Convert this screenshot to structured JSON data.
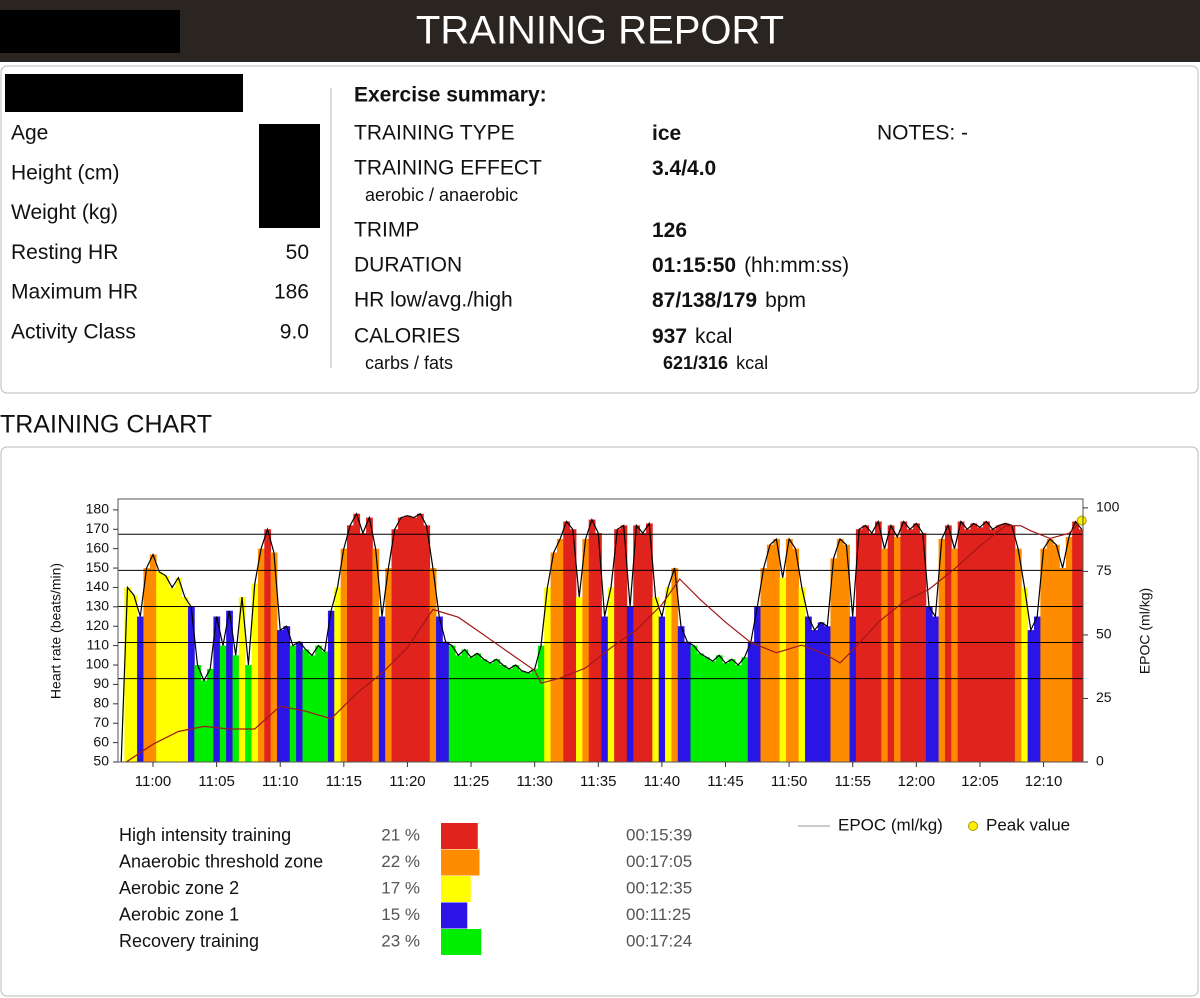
{
  "header": {
    "title": "TRAINING REPORT"
  },
  "profile": {
    "rows": [
      {
        "label": "Age"
      },
      {
        "label": "Height (cm)"
      },
      {
        "label": "Weight (kg)"
      },
      {
        "label": "Resting HR",
        "value": 50
      },
      {
        "label": "Maximum HR",
        "value": 186
      },
      {
        "label": "Activity Class",
        "value": "9.0"
      }
    ]
  },
  "summary": {
    "heading": "Exercise summary:",
    "notes": "NOTES: -",
    "rows": [
      {
        "label": "TRAINING TYPE",
        "value": "ice"
      },
      {
        "label": "TRAINING EFFECT",
        "sub_label": "aerobic / anaerobic",
        "value": "3.4/4.0"
      },
      {
        "label": "TRIMP",
        "value": "126"
      },
      {
        "label": "DURATION",
        "value": "01:15:50",
        "unit": "(hh:mm:ss)"
      },
      {
        "label": "HR low/avg./high",
        "value": "87/138/179",
        "unit": "bpm"
      },
      {
        "label": "CALORIES",
        "value": "937",
        "unit": "kcal",
        "sub_label": "carbs / fats",
        "sub_value": "621/316",
        "sub_unit": "kcal"
      }
    ]
  },
  "section_title": "TRAINING CHART",
  "chart_data": {
    "type": "area",
    "y_label": "Heart rate (beats/min)",
    "y2_label": "EPOC (ml/kg)",
    "xlim": [
      657.25,
      733.1
    ],
    "xticks": [
      {
        "value": 660,
        "label": "11:00"
      },
      {
        "value": 665,
        "label": "11:05"
      },
      {
        "value": 670,
        "label": "11:10"
      },
      {
        "value": 675,
        "label": "11:15"
      },
      {
        "value": 680,
        "label": "11:20"
      },
      {
        "value": 685,
        "label": "11:25"
      },
      {
        "value": 690,
        "label": "11:30"
      },
      {
        "value": 695,
        "label": "11:35"
      },
      {
        "value": 700,
        "label": "11:40"
      },
      {
        "value": 705,
        "label": "11:45"
      },
      {
        "value": 710,
        "label": "11:50"
      },
      {
        "value": 715,
        "label": "11:55"
      },
      {
        "value": 720,
        "label": "12:00"
      },
      {
        "value": 725,
        "label": "12:05"
      },
      {
        "value": 730,
        "label": "12:10"
      }
    ],
    "ylim": [
      50,
      185.6
    ],
    "yticks": [
      50,
      60,
      70,
      80,
      90,
      100,
      110,
      120,
      130,
      140,
      150,
      160,
      170,
      180
    ],
    "y2lim": [
      0,
      103.5
    ],
    "y2ticks": [
      0,
      25,
      50,
      75,
      100
    ],
    "zone_lines": [
      93,
      111.6,
      130.2,
      148.8,
      167.4
    ],
    "series": [
      {
        "color": "#000000",
        "x": [
          657.5,
          658,
          658.5,
          659,
          659.5,
          660,
          660.5,
          661,
          661.5,
          662,
          662.5,
          663,
          663.5,
          664,
          664.5,
          665,
          665.5,
          666,
          666.5,
          667,
          667.5,
          668,
          668.5,
          669,
          669.5,
          670,
          670.5,
          671,
          671.5,
          672,
          672.5,
          673,
          673.5,
          674,
          674.5,
          675,
          675.5,
          676,
          676.5,
          677,
          677.5,
          678,
          678.5,
          679,
          679.5,
          680,
          680.5,
          681,
          681.5,
          682,
          682.5,
          683,
          683.5,
          684,
          684.5,
          685,
          685.5,
          686,
          686.5,
          687,
          687.5,
          688,
          688.5,
          689,
          689.5,
          690,
          690.5,
          691,
          691.5,
          692,
          692.5,
          693,
          693.5,
          694,
          694.5,
          695,
          695.5,
          696,
          696.5,
          697,
          697.5,
          698,
          698.5,
          699,
          699.5,
          700,
          700.5,
          701,
          701.5,
          702,
          702.5,
          703,
          703.5,
          704,
          704.5,
          705,
          705.5,
          706,
          706.5,
          707,
          707.5,
          708,
          708.5,
          709,
          709.5,
          710,
          710.5,
          711,
          711.5,
          712,
          712.5,
          713,
          713.5,
          714,
          714.5,
          715,
          715.5,
          716,
          716.5,
          717,
          717.5,
          718,
          718.5,
          719,
          719.5,
          720,
          720.5,
          721,
          721.5,
          722,
          722.5,
          723,
          723.5,
          724,
          724.5,
          725,
          725.5,
          726,
          726.5,
          727,
          727.5,
          728,
          728.5,
          729,
          729.5,
          730,
          730.5,
          731,
          731.5,
          732,
          732.5,
          733
        ],
        "values": [
          50,
          140,
          136,
          125,
          150,
          157,
          148,
          146,
          140,
          145,
          135,
          130,
          100,
          92,
          98,
          125,
          110,
          128,
          105,
          135,
          100,
          142,
          160,
          170,
          158,
          118,
          120,
          110,
          112,
          108,
          105,
          110,
          107,
          128,
          140,
          160,
          172,
          178,
          168,
          176,
          160,
          125,
          150,
          170,
          176,
          177,
          176,
          178,
          172,
          150,
          125,
          112,
          110,
          105,
          108,
          104,
          106,
          103,
          101,
          103,
          100,
          98,
          100,
          97,
          96,
          98,
          110,
          140,
          158,
          165,
          174,
          170,
          135,
          165,
          175,
          168,
          125,
          140,
          170,
          172,
          130,
          172,
          168,
          173,
          135,
          125,
          140,
          150,
          120,
          112,
          110,
          106,
          104,
          102,
          105,
          101,
          103,
          100,
          104,
          112,
          130,
          150,
          162,
          165,
          145,
          165,
          160,
          140,
          125,
          118,
          122,
          120,
          155,
          165,
          162,
          125,
          170,
          172,
          168,
          174,
          160,
          172,
          166,
          174,
          170,
          173,
          168,
          130,
          125,
          165,
          172,
          160,
          174,
          170,
          173,
          171,
          174,
          170,
          172,
          173,
          172,
          160,
          140,
          118,
          125,
          160,
          165,
          162,
          150,
          166,
          174,
          170
        ]
      },
      {
        "name": "EPOC (ml/kg)",
        "color": "#a01818",
        "axis": "y2",
        "x": [
          657.9,
          660,
          662,
          664,
          666,
          668,
          670,
          672,
          674,
          676,
          678,
          680,
          682,
          684,
          686,
          688,
          690,
          690.5,
          692,
          694,
          696,
          698,
          700,
          701.4,
          703,
          705,
          707,
          709,
          711,
          713,
          714,
          715,
          717,
          719,
          721,
          723,
          725,
          727,
          728.2,
          729,
          730.5,
          732,
          733
        ],
        "values": [
          0,
          7,
          12,
          14,
          13,
          13,
          22,
          20,
          17,
          27,
          35,
          45,
          60,
          57,
          50,
          43,
          36,
          31,
          33,
          37,
          45,
          52,
          62,
          72,
          64,
          55,
          47,
          43,
          46,
          42,
          39,
          44,
          55,
          63,
          68,
          76,
          85,
          93,
          93,
          91,
          88,
          90,
          95
        ]
      }
    ],
    "peak": {
      "label": "Peak value",
      "x": 733,
      "value": 95,
      "color": "#ffee00"
    },
    "zones": [
      {
        "name": "High intensity training",
        "value": 21,
        "value_label": "21 %",
        "color": "#e0231c",
        "duration": "00:15:39"
      },
      {
        "name": "Anaerobic threshold zone",
        "value": 22,
        "value_label": "22 %",
        "color": "#ff8c00",
        "duration": "00:17:05"
      },
      {
        "name": "Aerobic zone 2",
        "value": 17,
        "value_label": "17 %",
        "color": "#ffff00",
        "duration": "00:12:35"
      },
      {
        "name": "Aerobic zone 1",
        "value": 15,
        "value_label": "15 %",
        "color": "#2a14e6",
        "duration": "00:11:25"
      },
      {
        "name": "Recovery training",
        "value": 23,
        "value_label": "23 %",
        "color": "#00ee00",
        "duration": "00:17:24"
      }
    ]
  }
}
